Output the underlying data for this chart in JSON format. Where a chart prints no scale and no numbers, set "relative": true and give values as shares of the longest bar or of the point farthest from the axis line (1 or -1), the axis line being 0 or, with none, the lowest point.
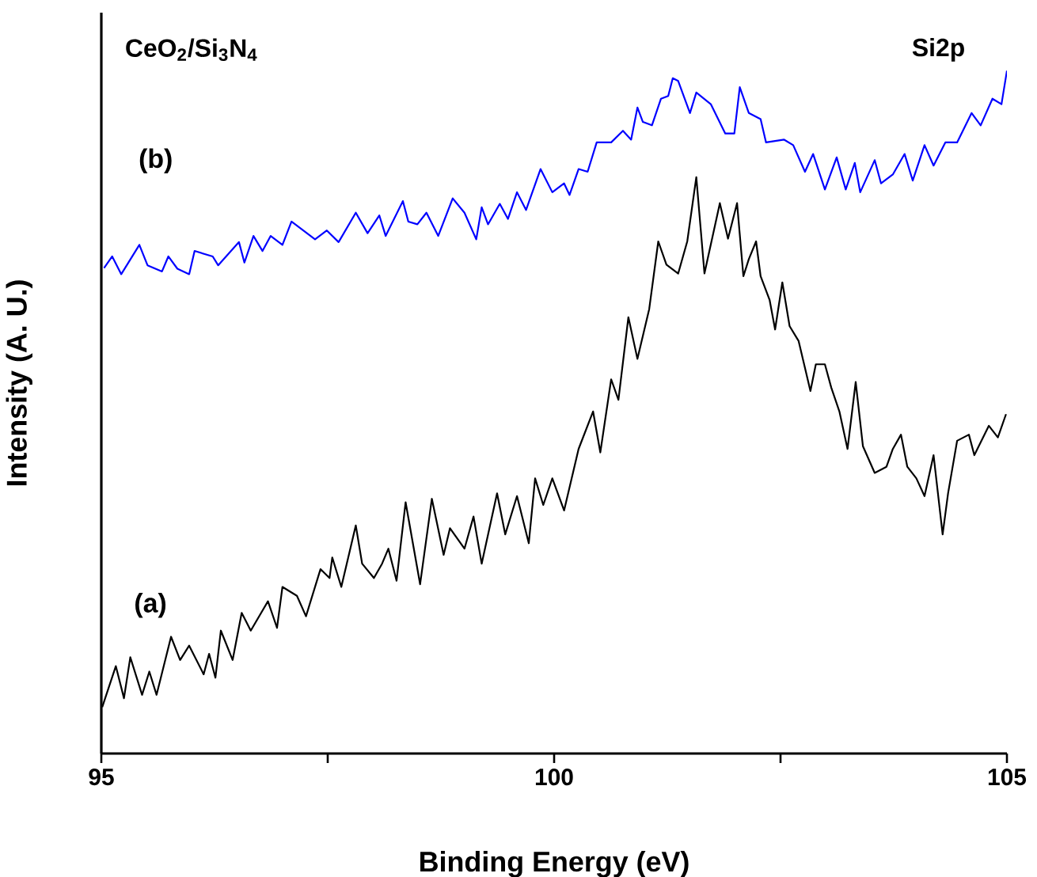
{
  "chart_data": {
    "type": "line",
    "relative": true,
    "xlabel": "Binding Energy (eV)",
    "ylabel": "Intensity (A. U.)",
    "annotations": [
      "CeO$_{2}$/Si$_{3}$N$_{4}$",
      "Si2p"
    ],
    "xlim": [
      95,
      105
    ],
    "xticks": [
      95,
      {
        "value": 97.5,
        "label": null
      },
      100,
      {
        "value": 102.5,
        "label": null
      },
      105
    ],
    "marker": "none",
    "line_style": "solid",
    "series": [
      {
        "name": "(a)",
        "color": "#000000",
        "x": [
          95.01,
          95.16,
          95.25,
          95.32,
          95.45,
          95.53,
          95.61,
          95.77,
          95.87,
          95.97,
          96.13,
          96.19,
          96.26,
          96.32,
          96.45,
          96.55,
          96.65,
          96.84,
          96.94,
          97.0,
          97.16,
          97.26,
          97.42,
          97.52,
          97.55,
          97.65,
          97.81,
          97.88,
          98.01,
          98.1,
          98.17,
          98.26,
          98.36,
          98.52,
          98.65,
          98.78,
          98.85,
          99.01,
          99.11,
          99.2,
          99.37,
          99.46,
          99.59,
          99.72,
          99.79,
          99.88,
          99.98,
          100.11,
          100.27,
          100.43,
          100.51,
          100.63,
          100.71,
          100.82,
          100.92,
          101.05,
          101.15,
          101.24,
          101.37,
          101.47,
          101.57,
          101.66,
          101.83,
          101.92,
          102.02,
          102.09,
          102.15,
          102.23,
          102.28,
          102.38,
          102.44,
          102.52,
          102.6,
          102.7,
          102.83,
          102.89,
          102.99,
          103.06,
          103.15,
          103.24,
          103.33,
          103.41,
          103.54,
          103.67,
          103.74,
          103.83,
          103.9,
          104.0,
          104.09,
          104.19,
          104.29,
          104.35,
          104.45,
          104.58,
          104.64,
          104.8,
          104.9,
          104.99
        ],
        "values": [
          0.068,
          0.128,
          0.081,
          0.141,
          0.086,
          0.12,
          0.086,
          0.171,
          0.137,
          0.158,
          0.116,
          0.146,
          0.111,
          0.18,
          0.137,
          0.206,
          0.18,
          0.223,
          0.184,
          0.244,
          0.231,
          0.201,
          0.27,
          0.257,
          0.287,
          0.244,
          0.334,
          0.278,
          0.257,
          0.278,
          0.3,
          0.253,
          0.368,
          0.248,
          0.373,
          0.291,
          0.33,
          0.3,
          0.347,
          0.278,
          0.381,
          0.321,
          0.377,
          0.308,
          0.403,
          0.364,
          0.403,
          0.356,
          0.446,
          0.501,
          0.441,
          0.548,
          0.518,
          0.639,
          0.578,
          0.651,
          0.75,
          0.716,
          0.703,
          0.75,
          0.844,
          0.703,
          0.806,
          0.754,
          0.806,
          0.699,
          0.724,
          0.75,
          0.699,
          0.664,
          0.621,
          0.69,
          0.626,
          0.604,
          0.531,
          0.57,
          0.57,
          0.536,
          0.501,
          0.446,
          0.544,
          0.45,
          0.411,
          0.42,
          0.446,
          0.467,
          0.42,
          0.403,
          0.377,
          0.437,
          0.321,
          0.381,
          0.458,
          0.467,
          0.437,
          0.48,
          0.463,
          0.497
        ]
      },
      {
        "name": "(b)",
        "color": "#0000ff",
        "x": [
          95.03,
          95.12,
          95.22,
          95.42,
          95.51,
          95.67,
          95.74,
          95.84,
          95.97,
          96.03,
          96.23,
          96.29,
          96.52,
          96.58,
          96.68,
          96.78,
          96.87,
          97.0,
          97.1,
          97.23,
          97.36,
          97.49,
          97.62,
          97.81,
          97.94,
          98.07,
          98.14,
          98.33,
          98.39,
          98.49,
          98.59,
          98.72,
          98.88,
          99.01,
          99.14,
          99.2,
          99.27,
          99.4,
          99.49,
          99.59,
          99.69,
          99.85,
          99.98,
          100.11,
          100.17,
          100.27,
          100.37,
          100.47,
          100.63,
          100.76,
          100.85,
          100.92,
          100.98,
          101.08,
          101.18,
          101.26,
          101.31,
          101.37,
          101.5,
          101.57,
          101.73,
          101.89,
          101.99,
          102.05,
          102.15,
          102.28,
          102.34,
          102.54,
          102.64,
          102.77,
          102.86,
          102.99,
          103.12,
          103.22,
          103.32,
          103.38,
          103.54,
          103.61,
          103.74,
          103.87,
          103.96,
          104.09,
          104.19,
          104.32,
          104.45,
          104.61,
          104.71,
          104.84,
          104.94,
          105.0
        ],
        "values": [
          0.711,
          0.728,
          0.702,
          0.745,
          0.715,
          0.706,
          0.728,
          0.71,
          0.702,
          0.736,
          0.728,
          0.715,
          0.749,
          0.719,
          0.758,
          0.736,
          0.758,
          0.745,
          0.779,
          0.766,
          0.753,
          0.766,
          0.749,
          0.792,
          0.762,
          0.788,
          0.758,
          0.809,
          0.779,
          0.775,
          0.792,
          0.758,
          0.813,
          0.792,
          0.753,
          0.8,
          0.775,
          0.805,
          0.783,
          0.822,
          0.796,
          0.856,
          0.822,
          0.835,
          0.818,
          0.856,
          0.852,
          0.895,
          0.895,
          0.912,
          0.899,
          0.946,
          0.925,
          0.92,
          0.959,
          0.963,
          0.989,
          0.985,
          0.938,
          0.968,
          0.951,
          0.908,
          0.908,
          0.976,
          0.938,
          0.929,
          0.895,
          0.899,
          0.891,
          0.852,
          0.878,
          0.826,
          0.873,
          0.826,
          0.865,
          0.822,
          0.869,
          0.835,
          0.848,
          0.878,
          0.839,
          0.891,
          0.861,
          0.895,
          0.895,
          0.938,
          0.92,
          0.959,
          0.951,
          1.0
        ]
      }
    ]
  }
}
